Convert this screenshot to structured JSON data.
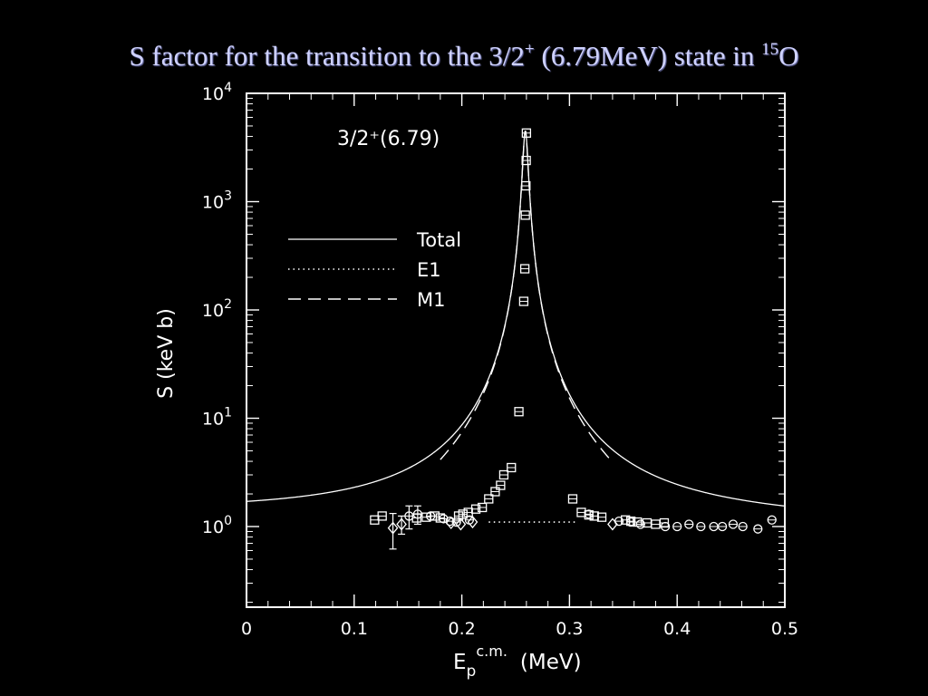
{
  "slide": {
    "title_main": "S factor for the transition to the 3/2",
    "title_sup": "+",
    "title_mid": " (6.79MeV) state in ",
    "title_sup2": "15",
    "title_end": "O"
  },
  "colors": {
    "background": "#000000",
    "title": "#cfd2ff",
    "plot": "#ffffff"
  },
  "chart_data": {
    "type": "scatter",
    "annotation": "3/2⁺(6.79)",
    "xlabel_main": "E",
    "xlabel_sub": "p",
    "xlabel_sup": "c.m.",
    "xlabel_unit": "(MeV)",
    "ylabel": "S (keV b)",
    "xlim": [
      0,
      0.5
    ],
    "ylim": [
      0.18,
      10000
    ],
    "y_scale": "log",
    "x_ticks": [
      {
        "v": 0,
        "label": "0"
      },
      {
        "v": 0.1,
        "label": "0.1"
      },
      {
        "v": 0.2,
        "label": "0.2"
      },
      {
        "v": 0.3,
        "label": "0.3"
      },
      {
        "v": 0.4,
        "label": "0.4"
      },
      {
        "v": 0.5,
        "label": "0.5"
      }
    ],
    "y_ticks": [
      {
        "v": 1,
        "base": "10",
        "exp": "0"
      },
      {
        "v": 10,
        "base": "10",
        "exp": "1"
      },
      {
        "v": 100,
        "base": "10",
        "exp": "2"
      },
      {
        "v": 1000,
        "base": "10",
        "exp": "3"
      },
      {
        "v": 10000,
        "base": "10",
        "exp": "4"
      }
    ],
    "legend": {
      "placement": "upper-left",
      "entries": [
        {
          "label": "Total",
          "style": "solid"
        },
        {
          "label": "E1",
          "style": "dotted"
        },
        {
          "label": "M1",
          "style": "dashed"
        }
      ]
    },
    "resonance": {
      "E0": 0.259,
      "width": 0.0024,
      "peak": 4500,
      "e1_level": 1.1
    },
    "series_squares": [
      {
        "x": 0.119,
        "y": 1.15
      },
      {
        "x": 0.126,
        "y": 1.25
      },
      {
        "x": 0.158,
        "y": 1.2
      },
      {
        "x": 0.167,
        "y": 1.22
      },
      {
        "x": 0.175,
        "y": 1.25
      },
      {
        "x": 0.18,
        "y": 1.2
      },
      {
        "x": 0.197,
        "y": 1.25
      },
      {
        "x": 0.201,
        "y": 1.3
      },
      {
        "x": 0.206,
        "y": 1.35
      },
      {
        "x": 0.213,
        "y": 1.45
      },
      {
        "x": 0.219,
        "y": 1.5
      },
      {
        "x": 0.225,
        "y": 1.8
      },
      {
        "x": 0.231,
        "y": 2.1
      },
      {
        "x": 0.236,
        "y": 2.4
      },
      {
        "x": 0.239,
        "y": 3.0
      },
      {
        "x": 0.246,
        "y": 3.5
      },
      {
        "x": 0.253,
        "y": 11.5
      },
      {
        "x": 0.2575,
        "y": 120
      },
      {
        "x": 0.2585,
        "y": 240
      },
      {
        "x": 0.259,
        "y": 750
      },
      {
        "x": 0.2595,
        "y": 1400
      },
      {
        "x": 0.2598,
        "y": 2400
      },
      {
        "x": 0.26,
        "y": 4300
      },
      {
        "x": 0.303,
        "y": 1.8
      },
      {
        "x": 0.311,
        "y": 1.35
      },
      {
        "x": 0.318,
        "y": 1.28
      },
      {
        "x": 0.323,
        "y": 1.25
      },
      {
        "x": 0.33,
        "y": 1.22
      },
      {
        "x": 0.352,
        "y": 1.15
      },
      {
        "x": 0.357,
        "y": 1.12
      },
      {
        "x": 0.363,
        "y": 1.1
      },
      {
        "x": 0.372,
        "y": 1.08
      },
      {
        "x": 0.38,
        "y": 1.05
      },
      {
        "x": 0.388,
        "y": 1.08
      }
    ],
    "series_circles": [
      {
        "x": 0.151,
        "y": 1.25,
        "err": 0.3
      },
      {
        "x": 0.159,
        "y": 1.3,
        "err": 0.25
      },
      {
        "x": 0.171,
        "y": 1.25
      },
      {
        "x": 0.183,
        "y": 1.18
      },
      {
        "x": 0.189,
        "y": 1.12
      },
      {
        "x": 0.195,
        "y": 1.1
      },
      {
        "x": 0.207,
        "y": 1.15
      },
      {
        "x": 0.318,
        "y": 1.3
      },
      {
        "x": 0.346,
        "y": 1.12
      },
      {
        "x": 0.357,
        "y": 1.1
      },
      {
        "x": 0.366,
        "y": 1.05
      },
      {
        "x": 0.389,
        "y": 1.0
      },
      {
        "x": 0.4,
        "y": 1.0
      },
      {
        "x": 0.411,
        "y": 1.05
      },
      {
        "x": 0.422,
        "y": 1.0
      },
      {
        "x": 0.434,
        "y": 1.0
      },
      {
        "x": 0.442,
        "y": 1.0
      },
      {
        "x": 0.452,
        "y": 1.05
      },
      {
        "x": 0.461,
        "y": 1.0
      },
      {
        "x": 0.475,
        "y": 0.95
      },
      {
        "x": 0.488,
        "y": 1.15
      }
    ],
    "series_diamonds": [
      {
        "x": 0.136,
        "y": 0.97,
        "err": 0.35
      },
      {
        "x": 0.144,
        "y": 1.05,
        "err": 0.2
      },
      {
        "x": 0.19,
        "y": 1.08
      },
      {
        "x": 0.199,
        "y": 1.05
      },
      {
        "x": 0.21,
        "y": 1.1
      },
      {
        "x": 0.34,
        "y": 1.05
      }
    ]
  }
}
